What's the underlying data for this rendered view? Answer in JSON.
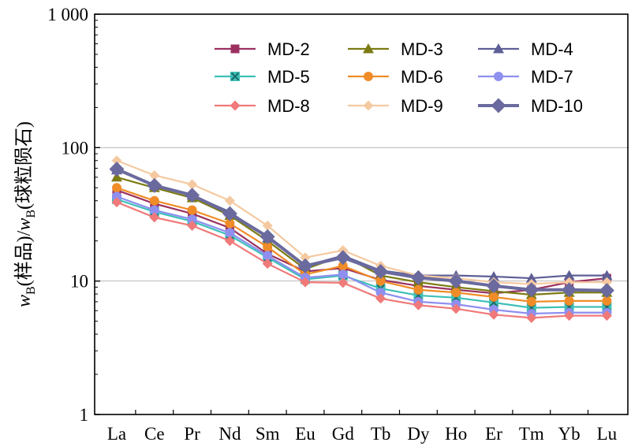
{
  "chart_data": {
    "type": "line",
    "title": "",
    "xlabel": "",
    "ylabel_parts": {
      "w1": "w",
      "sub1": "B",
      "t1": "(样品)/",
      "w2": "w",
      "sub2": "B",
      "t2": "(球粒陨石)"
    },
    "yscale": "log",
    "ylim": [
      1,
      1000
    ],
    "yticks": [
      1,
      10,
      100,
      1000
    ],
    "ytick_labels": [
      "1",
      "10",
      "100",
      "1 000"
    ],
    "grid": "horizontal major",
    "legend_position": "top-right",
    "categories": [
      "La",
      "Ce",
      "Pr",
      "Nd",
      "Sm",
      "Eu",
      "Gd",
      "Tb",
      "Dy",
      "Ho",
      "Er",
      "Tm",
      "Yb",
      "Lu"
    ],
    "series": [
      {
        "name": "MD-2",
        "color": "#9b3060",
        "marker": "square",
        "values": [
          48,
          38,
          32,
          25,
          16,
          11.8,
          12.5,
          10.2,
          9.2,
          8.6,
          8.1,
          8.6,
          9.8,
          10.5
        ]
      },
      {
        "name": "MD-3",
        "color": "#7c7b14",
        "marker": "triangle",
        "values": [
          60,
          50,
          42,
          31,
          20,
          12.3,
          15.5,
          11.0,
          9.8,
          9.0,
          8.4,
          7.9,
          8.2,
          8.2
        ]
      },
      {
        "name": "MD-4",
        "color": "#5e5f96",
        "marker": "triangle",
        "values": [
          68,
          52,
          44,
          33,
          21,
          13.0,
          15.5,
          12.0,
          11.0,
          11.0,
          10.8,
          10.5,
          11.0,
          11.0
        ]
      },
      {
        "name": "MD-5",
        "color": "#3ec0b8",
        "marker": "x-square",
        "values": [
          41,
          33,
          28,
          22,
          15,
          10.3,
          11.0,
          8.8,
          7.8,
          7.5,
          6.9,
          6.3,
          6.4,
          6.4
        ]
      },
      {
        "name": "MD-6",
        "color": "#f08c28",
        "marker": "circle",
        "values": [
          50,
          40,
          34,
          27,
          18,
          11.2,
          13.0,
          10.0,
          8.6,
          8.2,
          7.6,
          7.0,
          7.1,
          7.1
        ]
      },
      {
        "name": "MD-7",
        "color": "#8f8ff0",
        "marker": "circle",
        "values": [
          43,
          34,
          29,
          23,
          15.5,
          10.6,
          11.2,
          8.2,
          7.0,
          6.7,
          6.1,
          5.7,
          5.8,
          5.8
        ]
      },
      {
        "name": "MD-8",
        "color": "#f07a7a",
        "marker": "diamond",
        "values": [
          39,
          30,
          26,
          20,
          13.5,
          9.8,
          9.7,
          7.4,
          6.6,
          6.2,
          5.6,
          5.3,
          5.5,
          5.5
        ]
      },
      {
        "name": "MD-9",
        "color": "#f5c9a0",
        "marker": "diamond",
        "values": [
          80,
          62,
          53,
          40,
          26,
          15.0,
          17.0,
          13.0,
          11.0,
          10.5,
          9.8,
          9.5,
          9.8,
          9.8
        ]
      },
      {
        "name": "MD-10",
        "color": "#6a6a9e",
        "marker": "diamond-large",
        "values": [
          69,
          52,
          44,
          32,
          21.5,
          13.0,
          15.0,
          11.8,
          10.6,
          10.0,
          9.2,
          8.6,
          8.6,
          8.5
        ]
      }
    ]
  }
}
